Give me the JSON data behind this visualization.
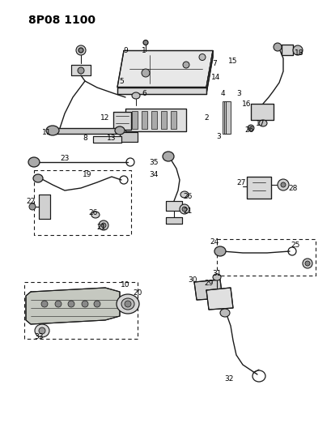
{
  "title": "8P08 1100",
  "bg_color": "#ffffff",
  "fig_width": 4.1,
  "fig_height": 5.33,
  "dpi": 100,
  "line_color": "#1a1a1a",
  "label_fontsize": 6.5,
  "title_fontsize": 10
}
